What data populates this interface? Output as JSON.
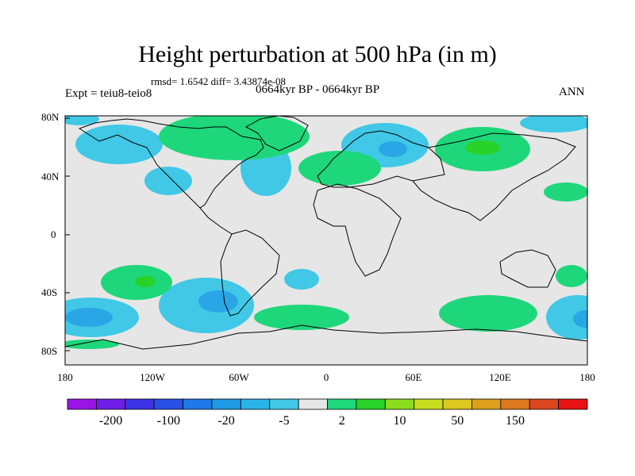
{
  "title": "Height perturbation at 500 hPa (in m)",
  "subtitle": "rmsd= 1.6542 diff= 3.43874e-08",
  "experiment": "Expt = teiu8-teio8",
  "period": "0664kyr BP - 0664kyr BP",
  "season": "ANN",
  "map": {
    "lat_ticks": [
      "80N",
      "40N",
      "0",
      "40S",
      "80S"
    ],
    "lon_ticks": [
      "180",
      "120W",
      "60W",
      "0",
      "60E",
      "120E",
      "180"
    ],
    "background_color": "#e6e6e6",
    "coastline_color": "#000000"
  },
  "colorbar": {
    "colors": [
      "#9a14e6",
      "#6e1ee6",
      "#3c32e6",
      "#2850e6",
      "#1e78e6",
      "#1e9ae6",
      "#2ab4e6",
      "#40c8e6",
      "#e6e6e6",
      "#1ed77a",
      "#28d228",
      "#8cdc1e",
      "#c8dc1e",
      "#dcc81e",
      "#dca01e",
      "#dc781e",
      "#dc461e",
      "#e61414"
    ],
    "labels": [
      "-200",
      "-100",
      "-20",
      "-5",
      "2",
      "10",
      "50",
      "150"
    ]
  }
}
